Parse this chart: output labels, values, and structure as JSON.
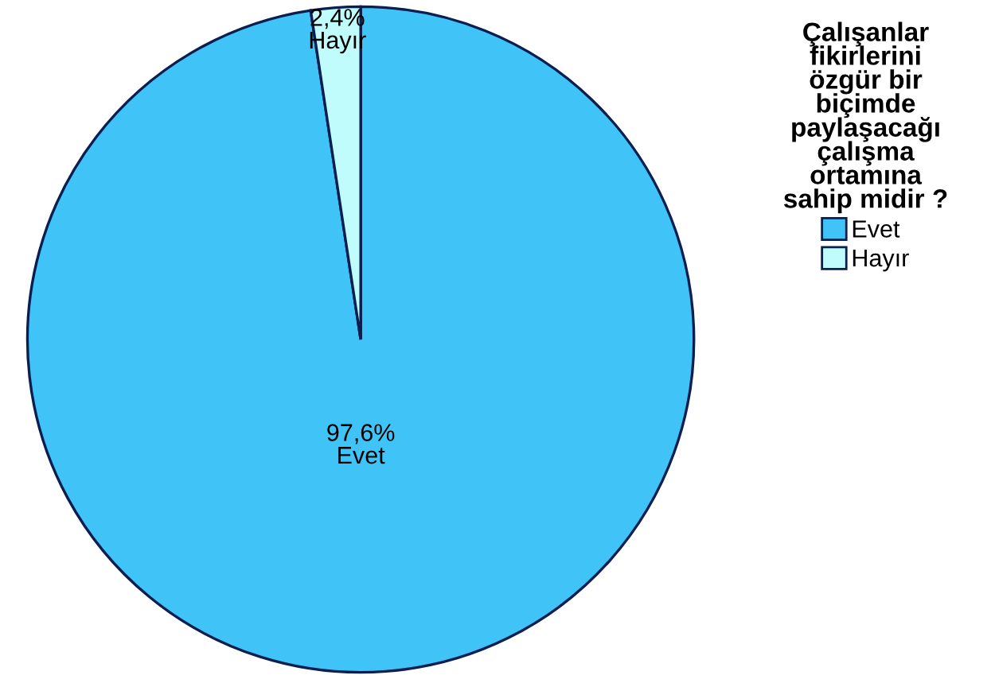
{
  "chart_data": {
    "type": "pie",
    "legend_title": "Çalışanlar\nfikirlerini\nözgür bir\nbiçimde\npaylaşacağı\nçalışma\nortamına\nsahip midir ?",
    "categories": [
      "Evet",
      "Hayır"
    ],
    "values": [
      97.6,
      2.4
    ],
    "colors": [
      "#40c4f8",
      "#c0fcfc"
    ],
    "value_labels": [
      "97,6%",
      "2,4%"
    ],
    "legend": "right"
  }
}
